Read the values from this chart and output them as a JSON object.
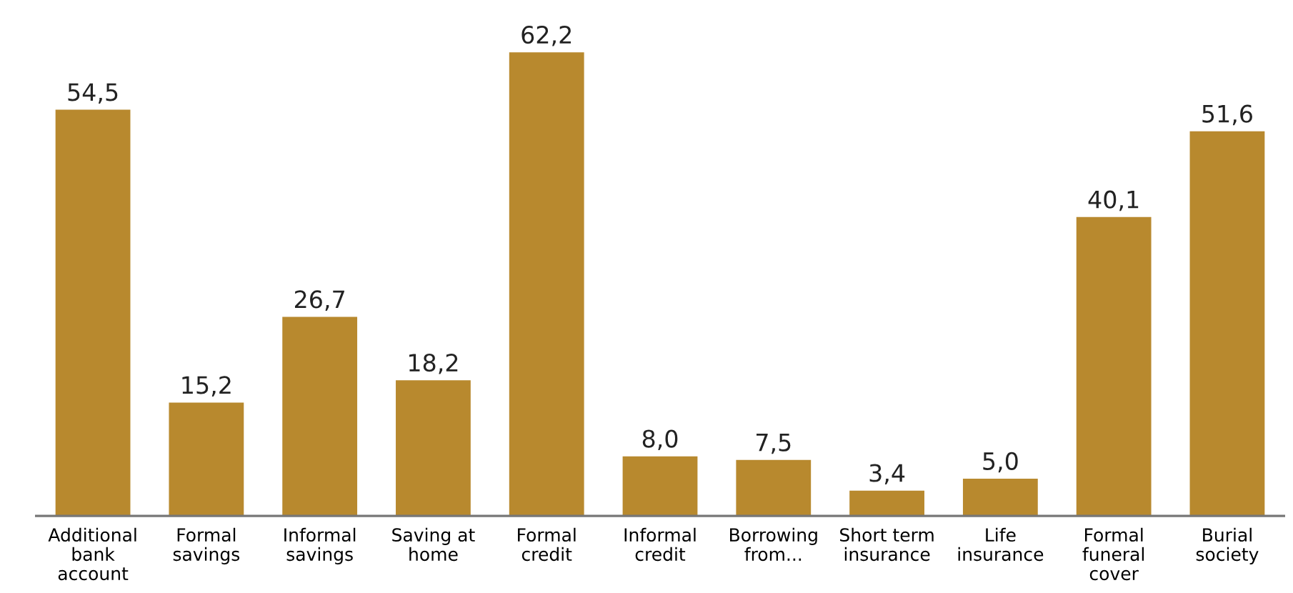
{
  "chart_data": {
    "type": "bar",
    "categories": [
      "Additional\nbank\naccount",
      "Formal\nsavings",
      "Informal\nsavings",
      "Saving at\nhome",
      "Formal\ncredit",
      "Informal\ncredit",
      "Borrowing\nfrom...",
      "Short term\ninsurance",
      "Life\ninsurance",
      "Formal\nfuneral\ncover",
      "Burial\nsociety"
    ],
    "values": [
      54.5,
      15.2,
      26.7,
      18.2,
      62.2,
      8.0,
      7.5,
      3.4,
      5.0,
      40.1,
      51.6
    ],
    "value_labels": [
      "54,5",
      "15,2",
      "26,7",
      "18,2",
      "62,2",
      "8,0",
      "7,5",
      "3,4",
      "5,0",
      "40,1",
      "51,6"
    ],
    "color": "#b8892e",
    "grid": false,
    "legend": false
  }
}
